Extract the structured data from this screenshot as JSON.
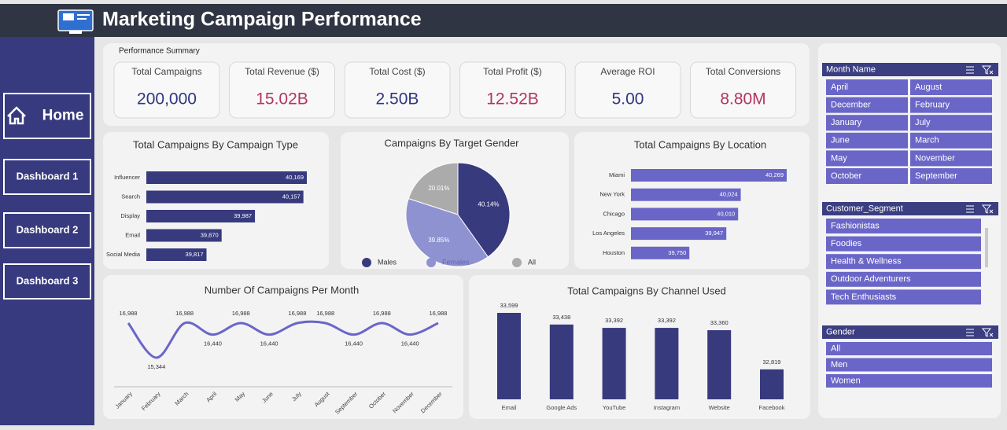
{
  "header": {
    "title": "Marketing Campaign Performance"
  },
  "nav": [
    "Home",
    "Dashboard 1",
    "Dashboard 2",
    "Dashboard 3"
  ],
  "summary": {
    "title": "Performance Summary",
    "kpis": [
      {
        "label": "Total Campaigns",
        "value": "200,000"
      },
      {
        "label": "Total Revenue ($)",
        "value": "15.02B"
      },
      {
        "label": "Total Cost ($)",
        "value": "2.50B"
      },
      {
        "label": "Total Profit ($)",
        "value": "12.52B"
      },
      {
        "label": "Average ROI",
        "value": "5.00"
      },
      {
        "label": "Total Conversions",
        "value": "8.80M"
      }
    ]
  },
  "chart_data": [
    {
      "type": "bar",
      "orientation": "horizontal",
      "title": "Total Campaigns By Campaign Type",
      "categories": [
        "Influencer",
        "Search",
        "Display",
        "Email",
        "Social Media"
      ],
      "values": [
        40169,
        40157,
        39987,
        39870,
        39817
      ],
      "value_labels": [
        "40,169",
        "40,157",
        "39,987",
        "39,870",
        "39,817"
      ],
      "color": "#383a7e"
    },
    {
      "type": "pie",
      "title": "Campaigns By Target Gender",
      "categories": [
        "Males",
        "Females",
        "All"
      ],
      "values": [
        40.14,
        39.85,
        20.01
      ],
      "value_labels": [
        "40.14%",
        "39.85%",
        "20.01%"
      ],
      "colors": [
        "#383a7e",
        "#8f92d0",
        "#ababab"
      ],
      "legend": "bottom"
    },
    {
      "type": "bar",
      "orientation": "horizontal",
      "title": "Total Campaigns By Location",
      "categories": [
        "Miami",
        "New York",
        "Chicago",
        "Los Angeles",
        "Houston"
      ],
      "values": [
        40269,
        40024,
        40010,
        39947,
        39750
      ],
      "value_labels": [
        "40,269",
        "40,024",
        "40,010",
        "39,947",
        "39,750"
      ],
      "color": "#6a66c8"
    },
    {
      "type": "line",
      "title": "Number Of Campaigns Per Month",
      "categories": [
        "January",
        "February",
        "March",
        "April",
        "May",
        "June",
        "July",
        "August",
        "September",
        "October",
        "November",
        "December"
      ],
      "values": [
        16988,
        15344,
        16988,
        16440,
        16988,
        16440,
        16988,
        16988,
        16440,
        16988,
        16440,
        16988
      ],
      "value_labels": [
        "16,988",
        "15,344",
        "16,988",
        "16,440",
        "16,988",
        "16,440",
        "16,988",
        "16,988",
        "16,440",
        "16,988",
        "16,440",
        "16,988"
      ],
      "color": "#6a66c8"
    },
    {
      "type": "bar",
      "orientation": "vertical",
      "title": "Total Campaigns By Channel Used",
      "categories": [
        "Email",
        "Google Ads",
        "YouTube",
        "Instagram",
        "Website",
        "Facebook"
      ],
      "values": [
        33599,
        33438,
        33392,
        33392,
        33360,
        32819
      ],
      "value_labels": [
        "33,599",
        "33,438",
        "33,392",
        "33,392",
        "33,360",
        "32,819"
      ],
      "color": "#383a7e"
    }
  ],
  "slicers": [
    {
      "title": "Month Name",
      "items": [
        "April",
        "August",
        "December",
        "February",
        "January",
        "July",
        "June",
        "March",
        "May",
        "November",
        "October",
        "September"
      ]
    },
    {
      "title": "Customer_Segment",
      "items": [
        "Fashionistas",
        "Foodies",
        "Health & Wellness",
        "Outdoor Adventurers",
        "Tech Enthusiasts"
      ]
    },
    {
      "title": "Gender",
      "items": [
        "All",
        "Men",
        "Women"
      ]
    }
  ]
}
